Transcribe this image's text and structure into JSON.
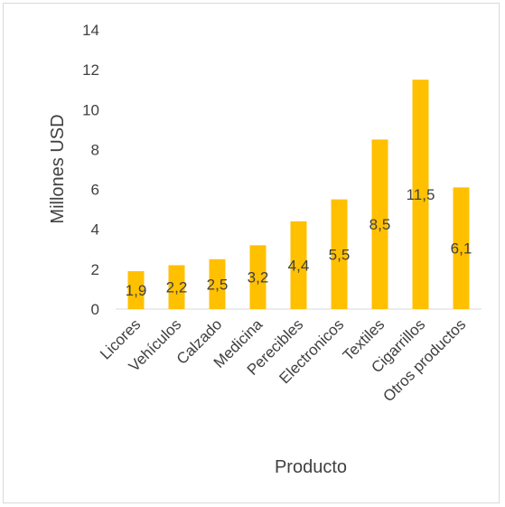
{
  "chart_data": {
    "type": "bar",
    "categories": [
      "Licores",
      "Vehículos",
      "Calzado",
      "Medicina",
      "Perecibles",
      "Electronicos",
      "Textiles",
      "Cigarrillos",
      "Otros productos"
    ],
    "values": [
      1.9,
      2.2,
      2.5,
      3.2,
      4.4,
      5.5,
      8.5,
      11.5,
      6.1
    ],
    "data_labels": [
      "1,9",
      "2,2",
      "2,5",
      "3,2",
      "4,4",
      "5,5",
      "8,5",
      "11,5",
      "6,1"
    ],
    "xlabel": "Producto",
    "ylabel": "Millones USD",
    "ylim": [
      0,
      14
    ],
    "yticks": [
      0,
      2,
      4,
      6,
      8,
      10,
      12,
      14
    ],
    "grid": false,
    "legend": "none",
    "bar_color": "#FFC000"
  }
}
